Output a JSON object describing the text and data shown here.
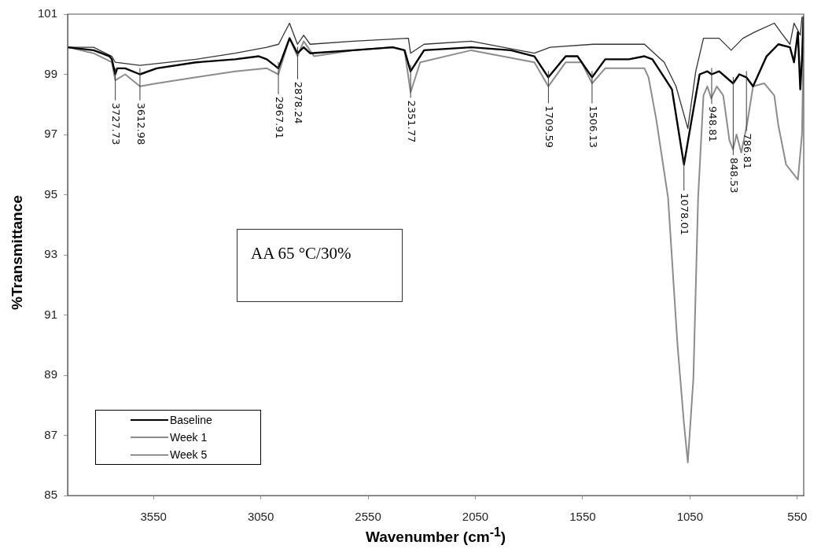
{
  "chart_data": {
    "type": "line",
    "xlabel": "Wavenumber (cm$^{-1}$)",
    "ylabel": "%Transmittance",
    "xlim": [
      3950,
      520
    ],
    "xticks": [
      3550,
      3050,
      2550,
      2050,
      1550,
      1050,
      550
    ],
    "ylim": [
      85,
      101
    ],
    "yticks": [
      85,
      87,
      89,
      91,
      93,
      95,
      97,
      99,
      101
    ],
    "grid": false,
    "legend": "bottom left",
    "marker": "none",
    "line_style": "solid",
    "series": [
      {
        "name": "Baseline",
        "color": "#000000",
        "x": [
          3950,
          3829,
          3792,
          3755,
          3744,
          3728,
          3719,
          3682,
          3613,
          3535,
          3352,
          3169,
          3059,
          3022,
          2968,
          2916,
          2879,
          2850,
          2820,
          2619,
          2435,
          2380,
          2352,
          2289,
          2069,
          1885,
          1775,
          1710,
          1629,
          1574,
          1506,
          1445,
          1335,
          1262,
          1225,
          1170,
          1134,
          1078,
          1042,
          1005,
          969,
          949,
          914,
          849,
          820,
          787,
          756,
          693,
          638,
          584,
          565,
          547,
          536,
          528,
          521
        ],
        "values": [
          99.9,
          99.8,
          99.7,
          99.6,
          99.5,
          99.0,
          99.2,
          99.2,
          99.0,
          99.2,
          99.4,
          99.5,
          99.6,
          99.5,
          99.2,
          100.2,
          99.7,
          99.9,
          99.7,
          99.8,
          99.9,
          99.8,
          99.1,
          99.8,
          99.9,
          99.8,
          99.6,
          98.9,
          99.6,
          99.6,
          98.9,
          99.5,
          99.5,
          99.6,
          99.5,
          98.9,
          98.5,
          96.0,
          97.5,
          99.0,
          99.1,
          99.0,
          99.1,
          98.7,
          99.0,
          98.9,
          98.6,
          99.6,
          100.0,
          99.9,
          99.4,
          100.4,
          98.5,
          99.5,
          100.9
        ]
      },
      {
        "name": "Week 1",
        "color": "#8c8c8c",
        "x": [
          3950,
          3829,
          3744,
          3728,
          3682,
          3613,
          3535,
          3352,
          3169,
          3022,
          2968,
          2916,
          2879,
          2850,
          2802,
          2619,
          2435,
          2380,
          2352,
          2307,
          2069,
          1775,
          1710,
          1629,
          1555,
          1506,
          1445,
          1262,
          1243,
          1207,
          1152,
          1108,
          1078,
          1060,
          1034,
          1012,
          987,
          969,
          951,
          925,
          895,
          866,
          849,
          833,
          811,
          785,
          756,
          704,
          657,
          638,
          602,
          547,
          528,
          521
        ],
        "values": [
          99.9,
          99.7,
          99.4,
          98.8,
          99.0,
          98.6,
          98.7,
          98.9,
          99.1,
          99.2,
          99.0,
          100.2,
          99.6,
          100.1,
          99.6,
          99.8,
          99.9,
          99.8,
          98.4,
          99.4,
          99.8,
          99.4,
          98.6,
          99.4,
          99.4,
          98.7,
          99.2,
          99.2,
          98.9,
          97.5,
          94.9,
          90.0,
          87.4,
          86.1,
          88.9,
          94.9,
          98.3,
          98.6,
          98.2,
          98.6,
          98.3,
          96.8,
          96.5,
          97.0,
          96.4,
          97.3,
          98.6,
          98.7,
          98.3,
          97.3,
          96.0,
          95.5,
          97.0,
          99.9
        ]
      },
      {
        "name": "Week 5",
        "color": "#333333",
        "x": [
          3950,
          3829,
          3744,
          3728,
          3613,
          3352,
          3169,
          3022,
          2967,
          2916,
          2879,
          2850,
          2820,
          2619,
          2362,
          2352,
          2289,
          2069,
          1775,
          1702,
          1500,
          1262,
          1170,
          1115,
          1060,
          1023,
          987,
          914,
          858,
          803,
          749,
          657,
          627,
          584,
          565,
          536,
          528
        ],
        "values": [
          99.9,
          99.9,
          99.6,
          99.4,
          99.3,
          99.5,
          99.7,
          99.9,
          100.0,
          100.7,
          100.0,
          100.3,
          100.0,
          100.1,
          100.2,
          99.7,
          100.0,
          100.1,
          99.7,
          99.9,
          100.0,
          100.0,
          99.4,
          98.6,
          97.2,
          99.1,
          100.2,
          100.2,
          99.8,
          100.2,
          100.4,
          100.7,
          100.4,
          100.0,
          100.7,
          100.3,
          100.9
        ]
      }
    ],
    "annotations": [
      {
        "text": "3727.73",
        "x": 3727.73,
        "y": 99.0
      },
      {
        "text": "3612.98",
        "x": 3612.98,
        "y": 99.0
      },
      {
        "text": "2967.91",
        "x": 2967.91,
        "y": 99.2
      },
      {
        "text": "2878.24",
        "x": 2878.24,
        "y": 99.7
      },
      {
        "text": "2351.77",
        "x": 2351.77,
        "y": 99.1
      },
      {
        "text": "1709.59",
        "x": 1709.59,
        "y": 98.9
      },
      {
        "text": "1506.13",
        "x": 1506.13,
        "y": 98.9
      },
      {
        "text": "1078.01",
        "x": 1078.01,
        "y": 96.0
      },
      {
        "text": "948.81",
        "x": 948.81,
        "y": 99.0
      },
      {
        "text": "848.53",
        "x": 848.53,
        "y": 98.7
      },
      {
        "text": "786.81",
        "x": 786.81,
        "y": 98.9
      },
      "AA 65 °C/30%"
    ]
  }
}
